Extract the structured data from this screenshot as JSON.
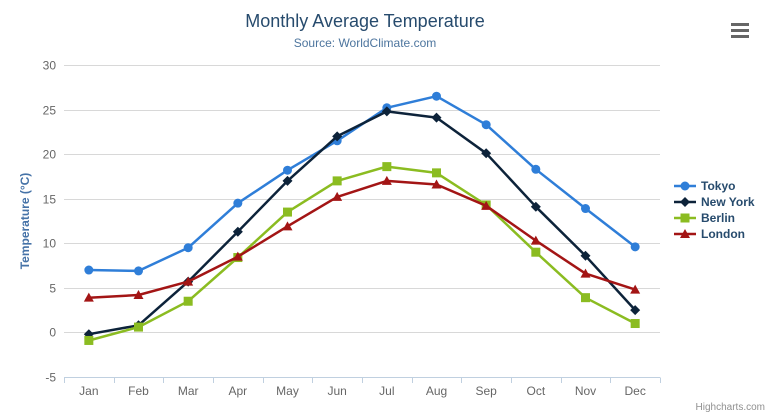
{
  "chart_data": {
    "type": "line",
    "title": "Monthly Average Temperature",
    "subtitle": "Source: WorldClimate.com",
    "xlabel": "",
    "ylabel": "Temperature (°C)",
    "ylim": [
      -5,
      30
    ],
    "ytick_interval": 5,
    "grid": true,
    "legend_position": "right",
    "categories": [
      "Jan",
      "Feb",
      "Mar",
      "Apr",
      "May",
      "Jun",
      "Jul",
      "Aug",
      "Sep",
      "Oct",
      "Nov",
      "Dec"
    ],
    "series": [
      {
        "name": "Tokyo",
        "color": "#2f7ed8",
        "marker": "circle",
        "values": [
          7.0,
          6.9,
          9.5,
          14.5,
          18.2,
          21.5,
          25.2,
          26.5,
          23.3,
          18.3,
          13.9,
          9.6
        ]
      },
      {
        "name": "New York",
        "color": "#0d233a",
        "marker": "diamond",
        "values": [
          -0.2,
          0.8,
          5.7,
          11.3,
          17.0,
          22.0,
          24.8,
          24.1,
          20.1,
          14.1,
          8.6,
          2.5
        ]
      },
      {
        "name": "Berlin",
        "color": "#8bbc21",
        "marker": "square",
        "values": [
          -0.9,
          0.6,
          3.5,
          8.4,
          13.5,
          17.0,
          18.6,
          17.9,
          14.3,
          9.0,
          3.9,
          1.0
        ]
      },
      {
        "name": "London",
        "color": "#a31515",
        "marker": "triangle",
        "values": [
          3.9,
          4.2,
          5.7,
          8.5,
          11.9,
          15.2,
          17.0,
          16.6,
          14.2,
          10.3,
          6.6,
          4.8
        ]
      }
    ]
  },
  "credit": {
    "label": "Highcharts.com"
  },
  "toolbar": {
    "export_icon": "hamburger-icon"
  },
  "colors": {
    "title_text": "#274b6d",
    "subtitle_text": "#4d759e",
    "axis_label_text": "#666666",
    "y_axis_title_text": "#4572a7",
    "legend_text": "#274b6d",
    "grid_line": "#d8d8d8",
    "x_axis_line": "#c0d0e0",
    "hamburger_icon": "#666666",
    "credit_text": "#909090"
  }
}
